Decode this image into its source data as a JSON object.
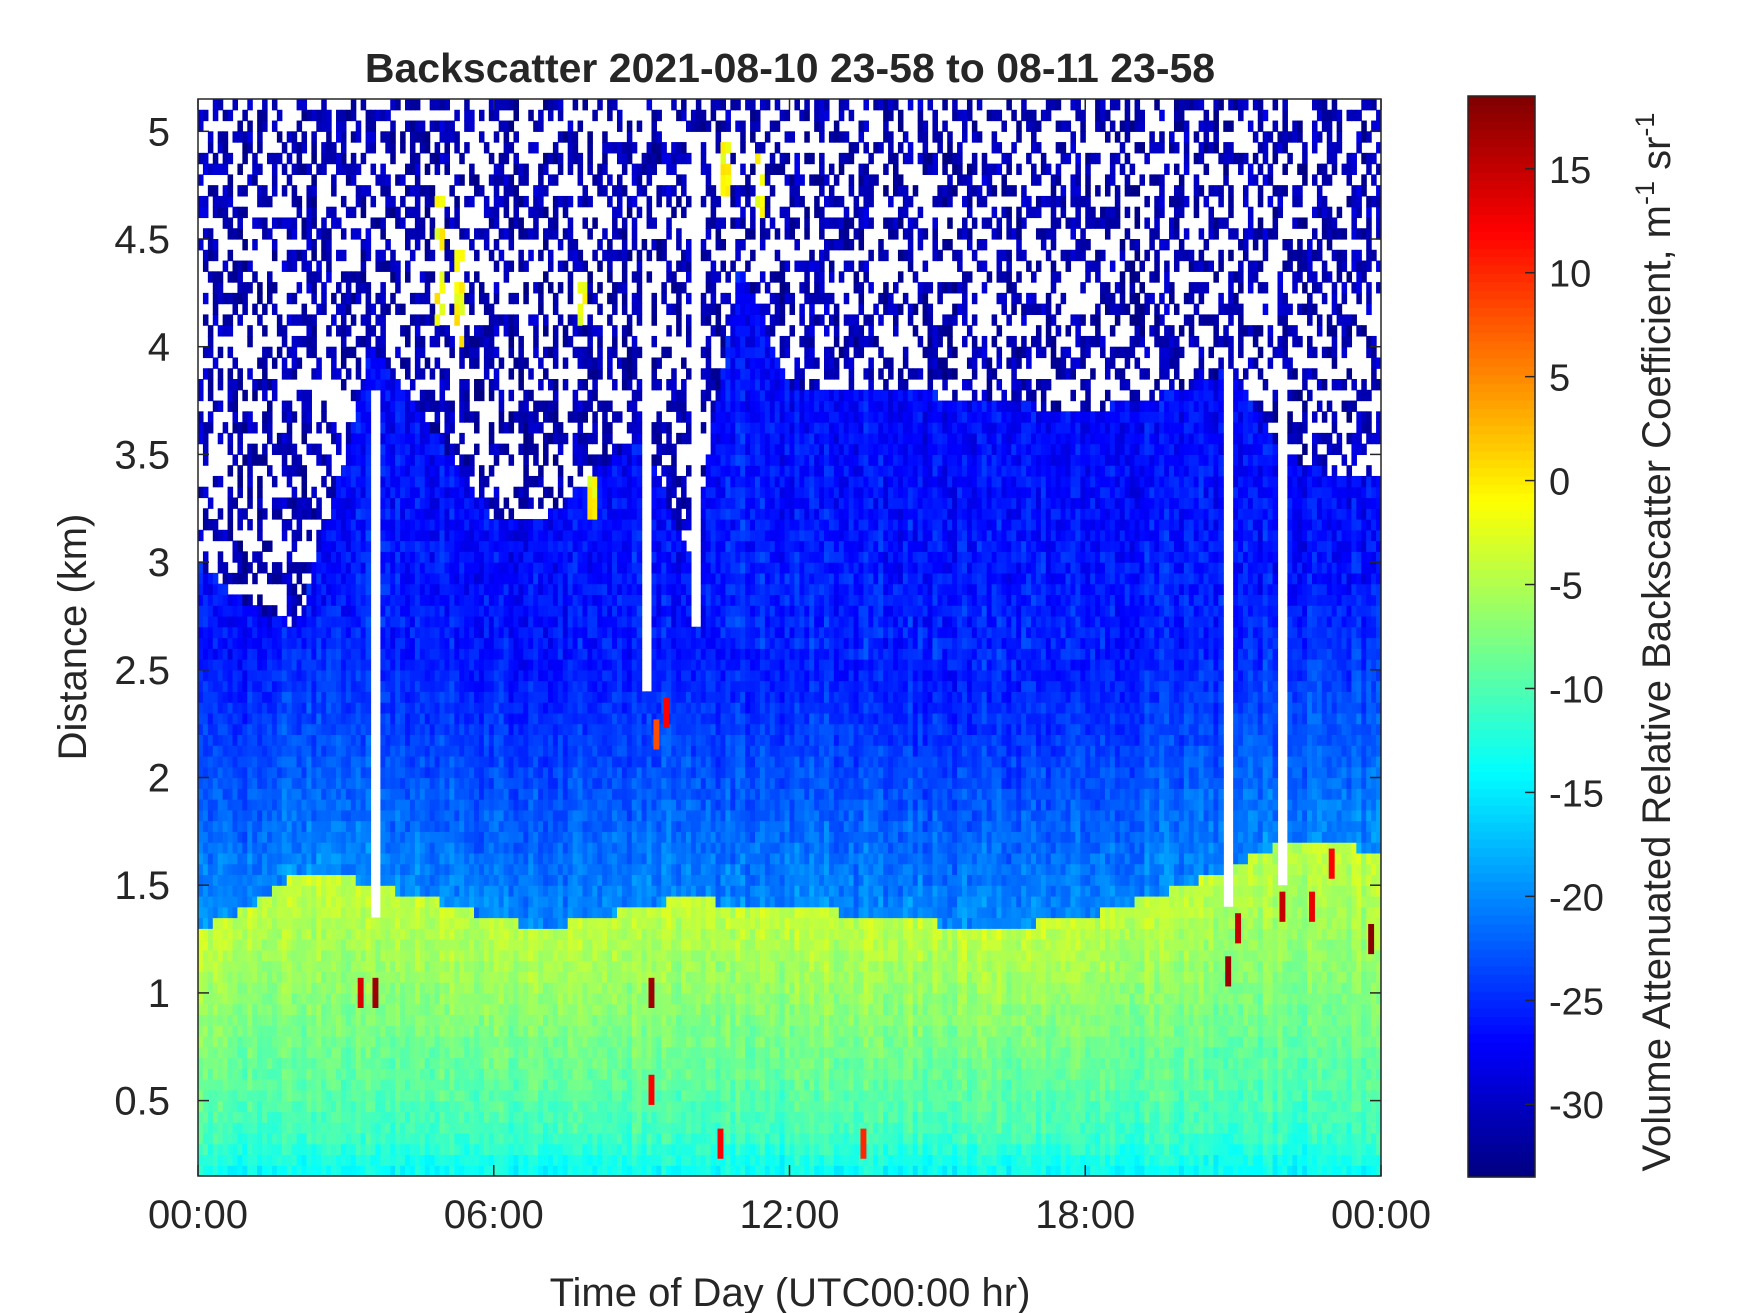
{
  "chart_data": {
    "type": "heatmap",
    "title": "Backscatter 2021-08-10 23-58 to 08-11 23-58",
    "xlabel": "Time of Day (UTC00:00 hr)",
    "ylabel": "Distance (km)",
    "colorbar_label": "Volume Attenuated Relative Backscatter Coefficient, m",
    "colorbar_label_sup1": "-1",
    "colorbar_label_mid": " sr",
    "colorbar_label_sup2": "-1",
    "x_ticks": [
      {
        "hour": 0,
        "label": "00:00"
      },
      {
        "hour": 6,
        "label": "06:00"
      },
      {
        "hour": 12,
        "label": "12:00"
      },
      {
        "hour": 18,
        "label": "18:00"
      },
      {
        "hour": 24,
        "label": "00:00"
      }
    ],
    "y_ticks": [
      {
        "km": 0.5,
        "label": "0.5"
      },
      {
        "km": 1,
        "label": "1"
      },
      {
        "km": 1.5,
        "label": "1.5"
      },
      {
        "km": 2,
        "label": "2"
      },
      {
        "km": 2.5,
        "label": "2.5"
      },
      {
        "km": 3,
        "label": "3"
      },
      {
        "km": 3.5,
        "label": "3.5"
      },
      {
        "km": 4,
        "label": "4"
      },
      {
        "km": 4.5,
        "label": "4.5"
      },
      {
        "km": 5,
        "label": "5"
      }
    ],
    "colorbar_ticks": [
      {
        "value": 15,
        "label": "15"
      },
      {
        "value": 10,
        "label": "10"
      },
      {
        "value": 5,
        "label": "5"
      },
      {
        "value": 0,
        "label": "0"
      },
      {
        "value": -5,
        "label": "-5"
      },
      {
        "value": -10,
        "label": "-10"
      },
      {
        "value": -15,
        "label": "-15"
      },
      {
        "value": -20,
        "label": "-20"
      },
      {
        "value": -25,
        "label": "-25"
      },
      {
        "value": -30,
        "label": "-30"
      }
    ],
    "xlim_hours": [
      0,
      24
    ],
    "ylim_km": [
      0.15,
      5.15
    ],
    "clim": [
      -33.5,
      18.5
    ],
    "colormap": "jet",
    "grid": false,
    "missing_color": "#ffffff",
    "profile_hours": [
      0,
      1,
      2,
      3,
      3.5,
      4.5,
      6,
      7,
      8,
      9,
      10,
      11,
      12,
      14,
      16,
      18,
      20,
      21,
      22,
      23,
      24
    ],
    "boundary_layer_km": [
      1.3,
      1.4,
      1.55,
      1.55,
      1.5,
      1.45,
      1.35,
      1.3,
      1.35,
      1.4,
      1.45,
      1.4,
      1.4,
      1.35,
      1.3,
      1.35,
      1.5,
      1.6,
      1.7,
      1.7,
      1.65
    ],
    "signal_top_km": [
      3.0,
      2.8,
      2.7,
      3.5,
      4.0,
      3.7,
      3.2,
      3.2,
      3.4,
      3.6,
      3.0,
      4.4,
      3.8,
      3.8,
      3.75,
      3.7,
      3.8,
      3.9,
      3.5,
      3.4,
      3.4
    ],
    "cloud_patches": [
      {
        "hour": 3.6,
        "km": 1.0,
        "value": 17
      },
      {
        "hour": 3.3,
        "km": 1.0,
        "value": 14
      },
      {
        "hour": 9.2,
        "km": 1.0,
        "value": 17
      },
      {
        "hour": 9.3,
        "km": 2.2,
        "value": 8
      },
      {
        "hour": 9.5,
        "km": 2.3,
        "value": 12
      },
      {
        "hour": 9.2,
        "km": 0.55,
        "value": 12
      },
      {
        "hour": 10.6,
        "km": 0.3,
        "value": 12
      },
      {
        "hour": 13.5,
        "km": 0.3,
        "value": 10
      },
      {
        "hour": 20.9,
        "km": 1.1,
        "value": 17
      },
      {
        "hour": 21.1,
        "km": 1.3,
        "value": 15
      },
      {
        "hour": 22.0,
        "km": 1.4,
        "value": 15
      },
      {
        "hour": 22.6,
        "km": 1.4,
        "value": 13
      },
      {
        "hour": 23.0,
        "km": 1.6,
        "value": 12
      },
      {
        "hour": 23.8,
        "km": 1.25,
        "value": 18
      }
    ],
    "aerosol_streaks": [
      {
        "hour": 4.9,
        "km_top": 4.8,
        "km_bottom": 4.1
      },
      {
        "hour": 5.3,
        "km_top": 4.5,
        "km_bottom": 4.0
      },
      {
        "hour": 7.8,
        "km_top": 4.3,
        "km_bottom": 4.1
      },
      {
        "hour": 8.0,
        "km_top": 3.4,
        "km_bottom": 3.2
      },
      {
        "hour": 10.7,
        "km_top": 5.0,
        "km_bottom": 4.7
      },
      {
        "hour": 11.4,
        "km_top": 4.9,
        "km_bottom": 4.6
      }
    ],
    "clear_columns": [
      {
        "hour": 3.6,
        "km_top": 3.8,
        "km_bottom": 1.35
      },
      {
        "hour": 9.1,
        "km_top": 4.3,
        "km_bottom": 2.4
      },
      {
        "hour": 10.1,
        "km_top": 5.0,
        "km_bottom": 2.7
      },
      {
        "hour": 20.9,
        "km_top": 3.9,
        "km_bottom": 1.4
      },
      {
        "hour": 22.0,
        "km_top": 3.9,
        "km_bottom": 1.5
      }
    ]
  }
}
